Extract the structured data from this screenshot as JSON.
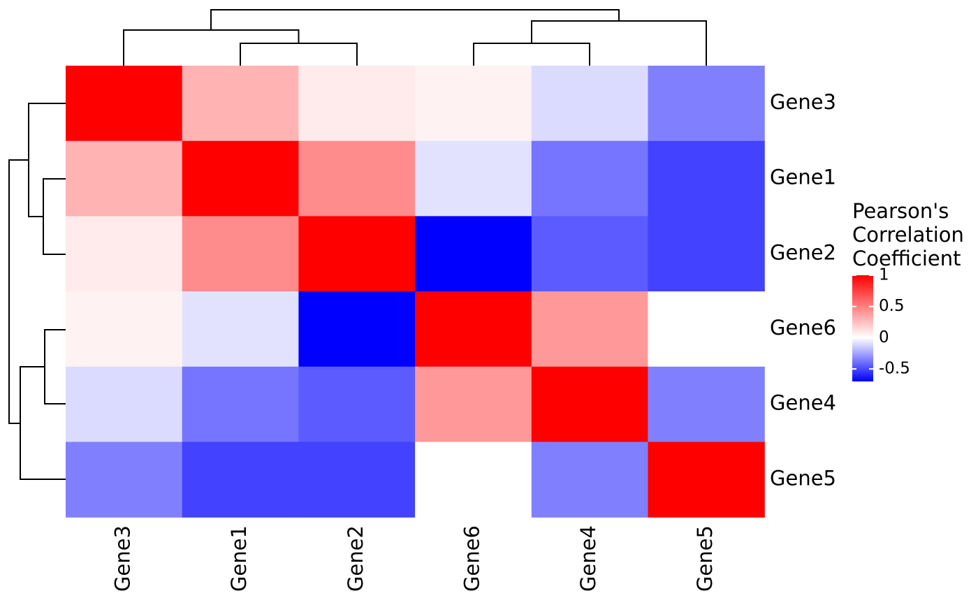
{
  "chart_data": {
    "type": "heatmap",
    "rows": [
      "Gene3",
      "Gene1",
      "Gene2",
      "Gene6",
      "Gene4",
      "Gene5"
    ],
    "columns": [
      "Gene3",
      "Gene1",
      "Gene2",
      "Gene6",
      "Gene4",
      "Gene5"
    ],
    "values": [
      [
        1.0,
        0.3,
        0.08,
        0.05,
        -0.1,
        -0.35
      ],
      [
        0.3,
        1.0,
        0.45,
        -0.08,
        -0.38,
        -0.52
      ],
      [
        0.08,
        0.45,
        1.0,
        -0.7,
        -0.45,
        -0.52
      ],
      [
        0.05,
        -0.08,
        -0.7,
        1.0,
        0.4,
        0.0
      ],
      [
        -0.1,
        -0.38,
        -0.45,
        0.4,
        1.0,
        -0.35
      ],
      [
        -0.35,
        -0.52,
        -0.52,
        0.0,
        -0.35,
        1.0
      ]
    ],
    "legend": {
      "title": [
        "Pearson's",
        "Correlation",
        "Coefficient"
      ],
      "ticks": [
        {
          "value": 1,
          "label": "1"
        },
        {
          "value": 0.5,
          "label": "0.5"
        },
        {
          "value": 0,
          "label": "0"
        },
        {
          "value": -0.5,
          "label": "-0.5"
        }
      ],
      "range": [
        -0.7,
        1.0
      ],
      "position": "right"
    },
    "color_scale": {
      "low": "#0000ff",
      "mid": "#ffffff",
      "high": "#ff0000",
      "midpoint": 0
    },
    "column_dendrogram": "(((Gene3,(Gene1,Gene2)),((Gene6,Gene4),Gene5))",
    "row_dendrogram": "((Gene3,(Gene1,Gene2)),((Gene6,Gene4),Gene5))"
  }
}
